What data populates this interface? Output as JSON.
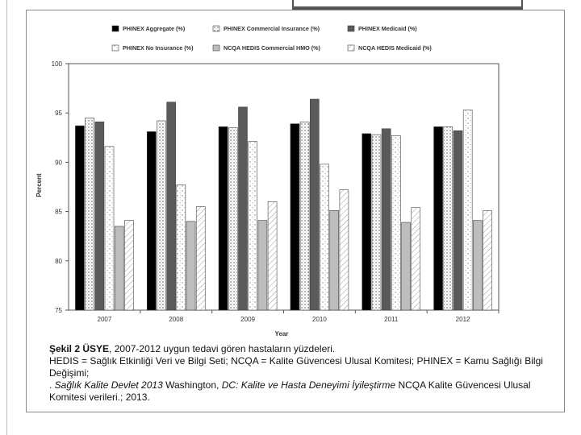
{
  "chart_data": {
    "type": "bar",
    "title": "",
    "xlabel": "Year",
    "ylabel": "Percent",
    "ylim": [
      75,
      100
    ],
    "yticks": [
      "75",
      "80",
      "85",
      "90",
      "95",
      "100"
    ],
    "categories": [
      "2007",
      "2008",
      "2009",
      "2010",
      "2011",
      "2012"
    ],
    "grid": false,
    "legend_position": "top",
    "series": [
      {
        "name": "PHINEX Aggregate (%)",
        "values": [
          93.7,
          93.1,
          93.6,
          93.9,
          92.9,
          93.6
        ],
        "color": "#000000",
        "pattern": "solid-black"
      },
      {
        "name": "PHINEX Commercial Insurance (%)",
        "values": [
          94.5,
          94.2,
          93.5,
          94.1,
          92.8,
          93.6
        ],
        "color": "#ffffff",
        "pattern": "dots"
      },
      {
        "name": "PHINEX Medicaid (%)",
        "values": [
          94.1,
          96.1,
          95.6,
          96.4,
          93.4,
          93.2
        ],
        "color": "#5a5a5a",
        "pattern": "solid-gray"
      },
      {
        "name": "PHINEX No Insurance (%)",
        "values": [
          91.6,
          87.7,
          92.1,
          89.8,
          92.7,
          95.3
        ],
        "color": "#ffffff",
        "pattern": "speckle"
      },
      {
        "name": "NCQA HEDIS Commercial HMO (%)",
        "values": [
          83.5,
          84.0,
          84.1,
          85.1,
          83.9,
          84.1
        ],
        "color": "#bdbdbd",
        "pattern": "solid-light"
      },
      {
        "name": "NCQA HEDIS Medicaid (%)",
        "values": [
          84.1,
          85.5,
          86.0,
          87.2,
          85.4,
          85.1
        ],
        "color": "#ffffff",
        "pattern": "hatch"
      }
    ]
  },
  "caption": {
    "figure_label": "Şekil 2 ÜSYE",
    "figure_text": ", 2007-2012 uygun tedavi gören hastaların yüzdeleri.",
    "line2": "HEDIS = Sağlık Etkinliği Veri ve Bilgi Seti;  NCQA = Kalite Güvencesi Ulusal Komitesi; PHINEX = Kamu Sağlığı Bilgi Değişimi;",
    "line3_prefix": ". ",
    "line3_italic": "Sağlık Kalite Devlet  2013",
    "line3_mid": " Washington, ",
    "line3_italic2": "DC: Kalite ve Hasta Deneyimi İyileştirme",
    "line3_suffix": "  NCQA Kalite Güvencesi Ulusal Komitesi verileri.; 2013."
  }
}
